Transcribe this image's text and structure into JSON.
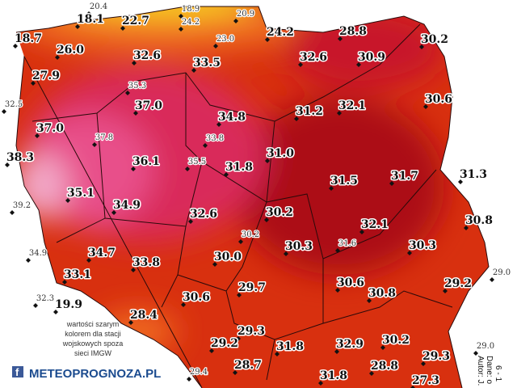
{
  "stations": [
    "20.4",
    "18.9",
    "20.9",
    "18.1",
    "22.7",
    "24.2",
    "18.7",
    "23.0",
    "24.2",
    "28.8",
    "30.2",
    "26.0",
    "32.6",
    "33.5",
    "32.6",
    "30.9",
    "27.9",
    "35.3",
    "37.0",
    "32.5",
    "30.6",
    "34.8",
    "31.2",
    "32.1",
    "37.0",
    "37.8",
    "33.8",
    "38.3",
    "36.1",
    "35.5",
    "31.8",
    "31.0",
    "31.3",
    "31.5",
    "31.7",
    "39.2",
    "35.1",
    "34.9",
    "32.6",
    "30.2",
    "30.8",
    "32.1",
    "30.2",
    "31.6",
    "30.3",
    "30.3",
    "34.9",
    "34.7",
    "30.0",
    "33.8",
    "33.1",
    "29.0",
    "30.6",
    "29.7",
    "29.2",
    "32.3",
    "19.9",
    "30.6",
    "30.8",
    "28.4",
    "29.0",
    "29.3",
    "29.2",
    "31.8",
    "32.9",
    "30.2",
    "29.3",
    "28.7",
    "28.8",
    "29.4",
    "31.8",
    "27.3"
  ],
  "legend_note": [
    "wartości szarym",
    "kolorem dla stacji",
    "wojskowych spoza",
    "sieci IMGW"
  ],
  "logo": "METEOPROGNOZA.PL",
  "credits": [
    "Autor: J. L",
    "Dane: o",
    "6 - 1"
  ]
}
